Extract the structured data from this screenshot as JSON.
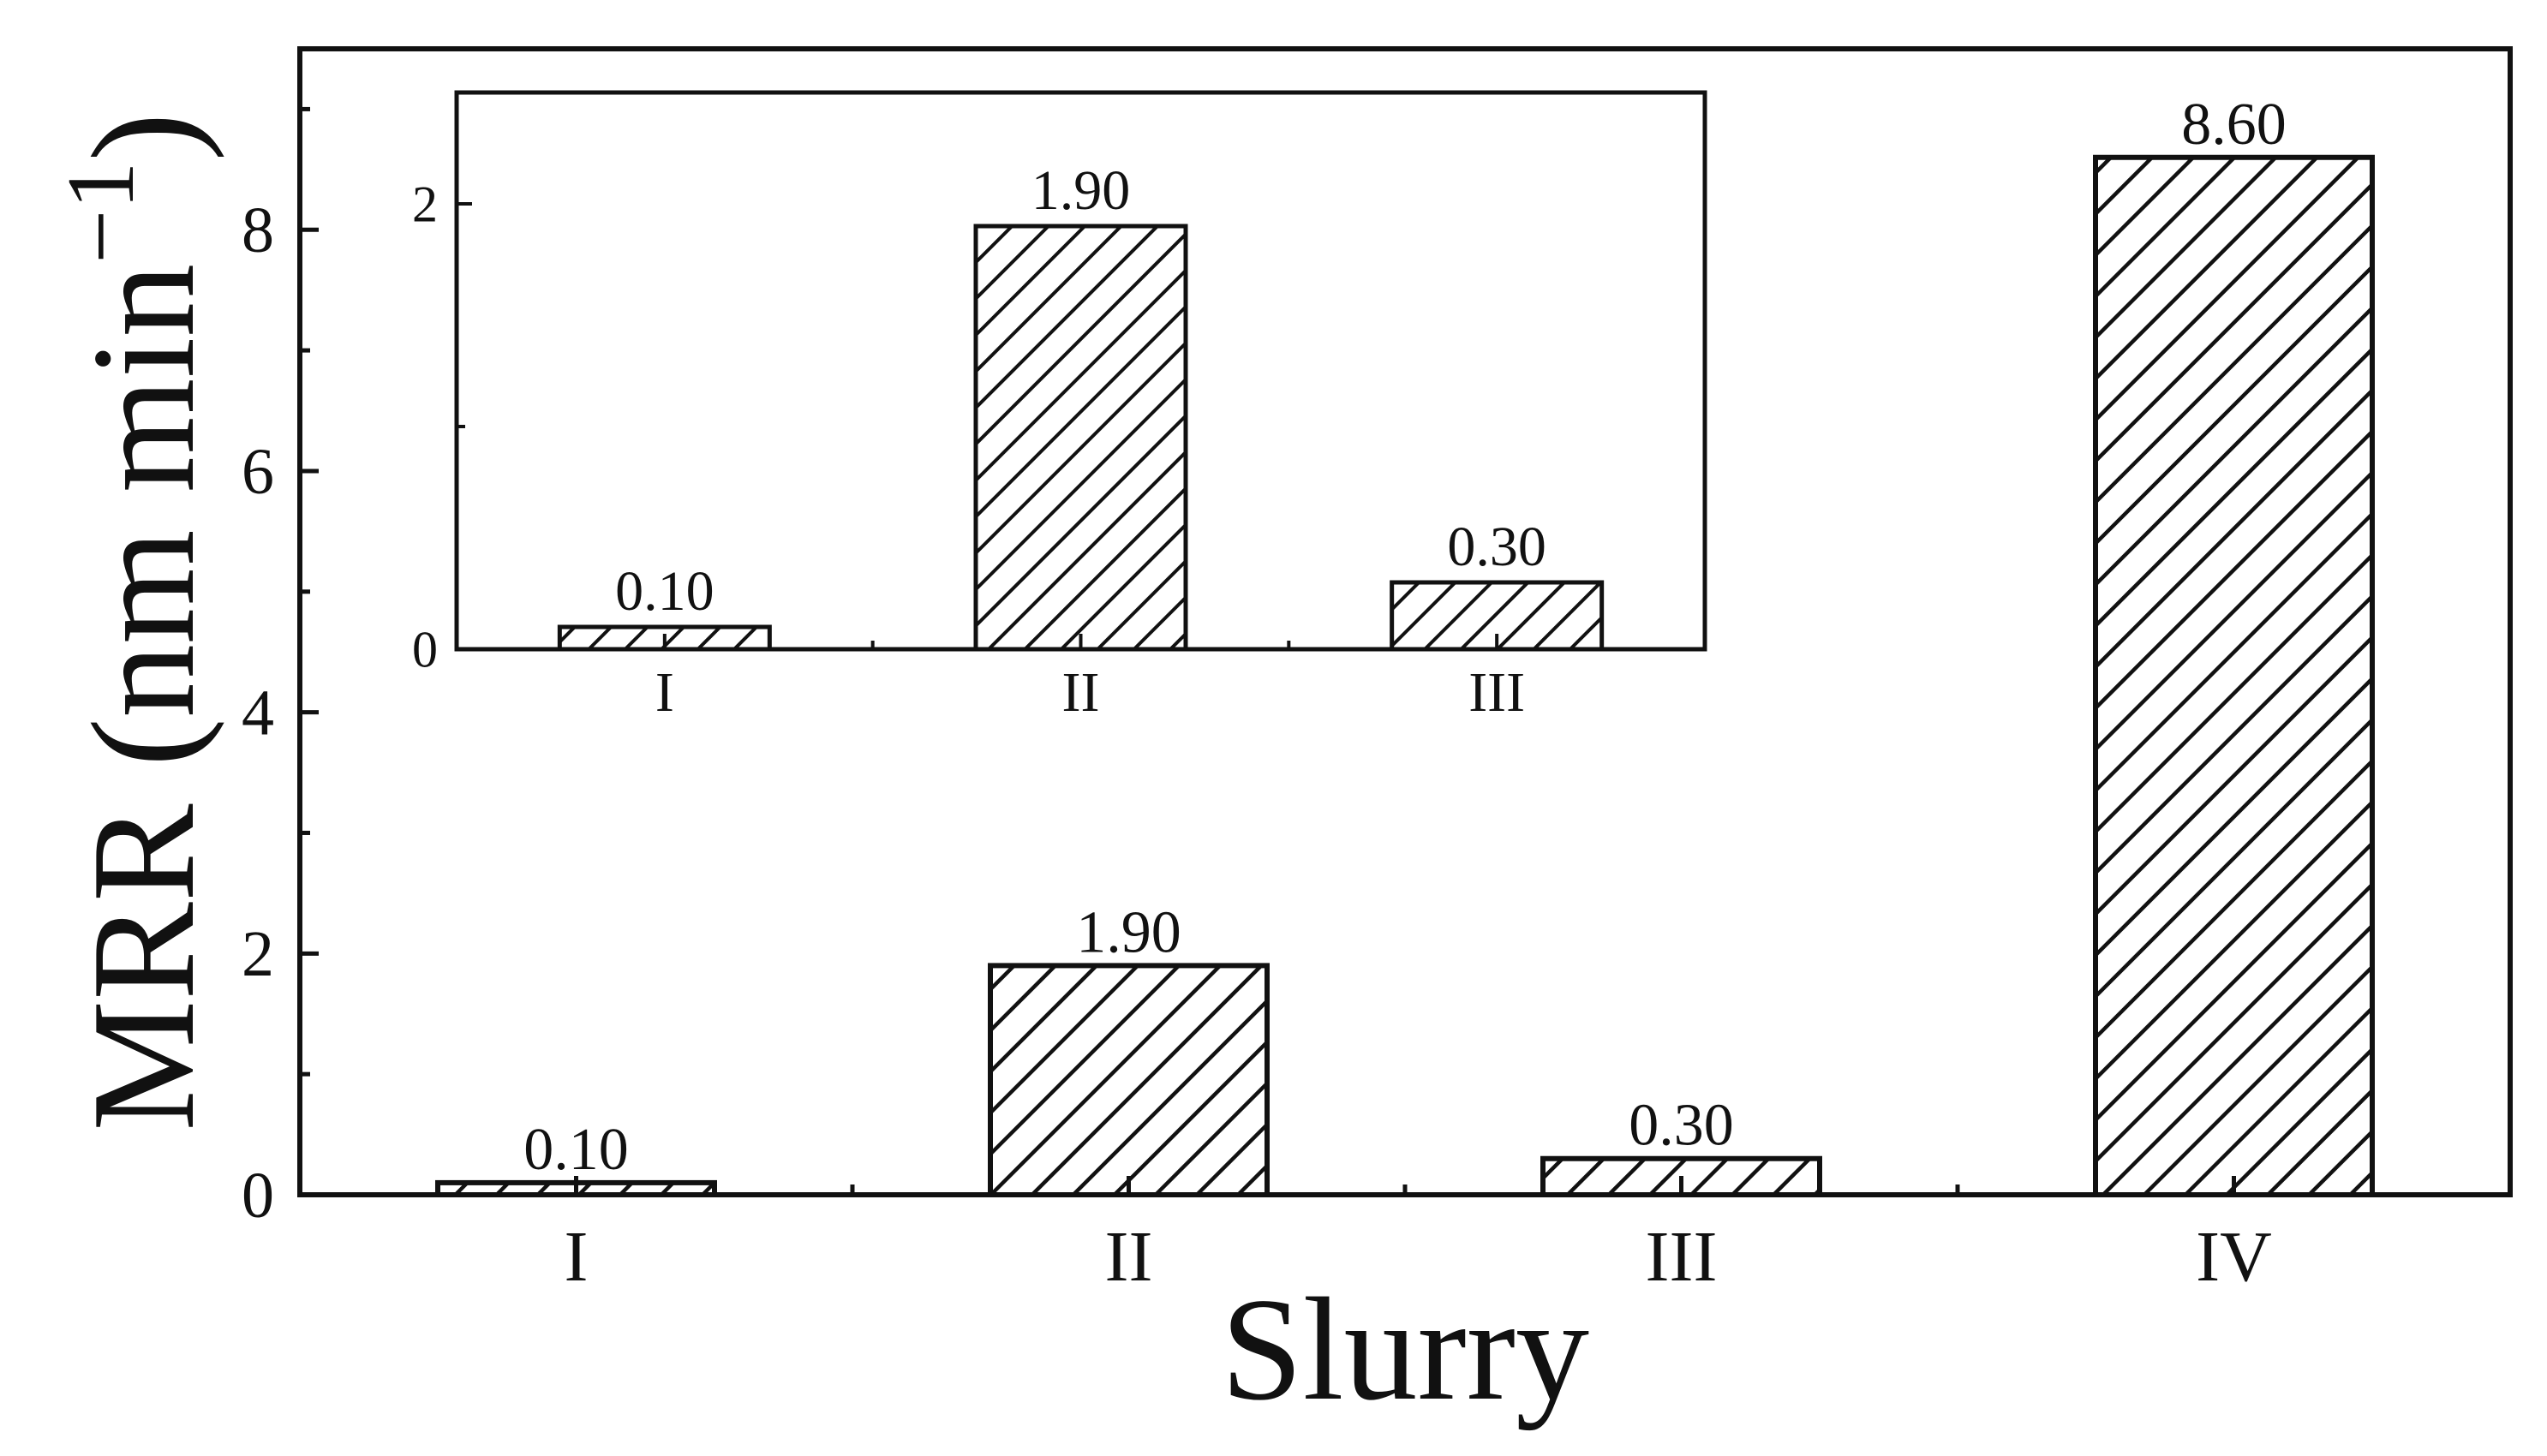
{
  "chart_data": [
    {
      "type": "bar",
      "title": "",
      "xlabel": "Slurry",
      "ylabel": "MRR (nm min",
      "ylabel_superscript": "−1",
      "ylabel_close": ")",
      "categories": [
        "I",
        "II",
        "III",
        "IV"
      ],
      "values": [
        0.1,
        1.9,
        0.3,
        8.6
      ],
      "data_labels": [
        "0.10",
        "1.90",
        "0.30",
        "8.60"
      ],
      "ylim": [
        0,
        9.5
      ],
      "yticks": [
        0,
        2,
        4,
        6,
        8
      ],
      "ytick_labels": [
        "0",
        "2",
        "4",
        "6",
        "8"
      ],
      "bar_fill": "diagonal hatch",
      "grid": false
    },
    {
      "type": "bar",
      "title": "",
      "categories": [
        "I",
        "II",
        "III"
      ],
      "values": [
        0.1,
        1.9,
        0.3
      ],
      "data_labels": [
        "0.10",
        "1.90",
        "0.30"
      ],
      "ylim": [
        0,
        2.5
      ],
      "yticks": [
        0,
        2
      ],
      "ytick_labels": [
        "0",
        "2"
      ],
      "bar_fill": "diagonal hatch",
      "grid": false
    }
  ]
}
